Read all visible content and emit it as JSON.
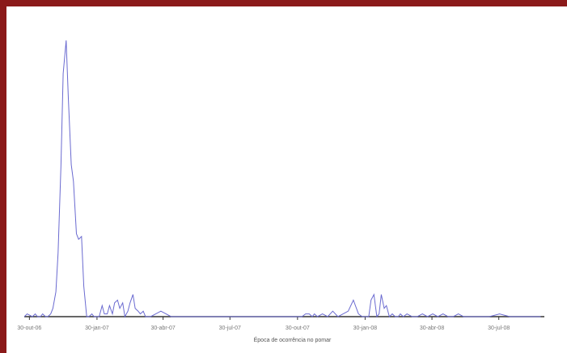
{
  "colors": {
    "frame": "#8b1a1a",
    "series": "#6a6ad0",
    "axis": "#333333",
    "tick_text": "#777777"
  },
  "chart_data": {
    "type": "line",
    "title": "",
    "xlabel": "Época de ocorrência no pomar",
    "ylabel": "",
    "x_tick_labels": [
      "30-out-06",
      "30-jan-07",
      "30-abr-07",
      "30-jul-07",
      "30-out-07",
      "30-jan-08",
      "30-abr-08",
      "30-jul-08"
    ],
    "x_ticks": [
      "2006-10-30",
      "2007-01-30",
      "2007-04-30",
      "2007-07-30",
      "2007-10-30",
      "2008-01-30",
      "2008-04-30",
      "2008-07-30"
    ],
    "xlim": [
      "2006-10-23",
      "2008-09-30"
    ],
    "ylim": [
      0,
      100
    ],
    "grid": false,
    "legend": "none",
    "series": [
      {
        "x": [
          "2006-10-23",
          "2006-10-27",
          "2006-11-03",
          "2006-11-07",
          "2006-11-10",
          "2006-11-14",
          "2006-11-17",
          "2006-11-21",
          "2006-11-24",
          "2006-11-28",
          "2006-12-01",
          "2006-12-05",
          "2006-12-08",
          "2006-12-12",
          "2006-12-15",
          "2006-12-19",
          "2006-12-22",
          "2006-12-26",
          "2006-12-29",
          "2007-01-02",
          "2007-01-05",
          "2007-01-09",
          "2007-01-12",
          "2007-01-16",
          "2007-01-19",
          "2007-01-23",
          "2007-01-26",
          "2007-01-30",
          "2007-02-02",
          "2007-02-06",
          "2007-02-09",
          "2007-02-13",
          "2007-02-16",
          "2007-02-20",
          "2007-02-23",
          "2007-02-27",
          "2007-03-02",
          "2007-03-06",
          "2007-03-09",
          "2007-03-13",
          "2007-03-16",
          "2007-03-20",
          "2007-03-23",
          "2007-03-27",
          "2007-03-30",
          "2007-04-03",
          "2007-04-06",
          "2007-04-13",
          "2007-04-20",
          "2007-04-27",
          "2007-05-11",
          "2007-06-01",
          "2007-07-01",
          "2007-08-01",
          "2007-09-01",
          "2007-10-01",
          "2007-10-22",
          "2007-10-29",
          "2007-11-05",
          "2007-11-10",
          "2007-11-15",
          "2007-11-19",
          "2007-11-22",
          "2007-11-26",
          "2007-12-03",
          "2007-12-10",
          "2007-12-17",
          "2007-12-24",
          "2007-12-31",
          "2008-01-07",
          "2008-01-14",
          "2008-01-21",
          "2008-01-26",
          "2008-01-31",
          "2008-02-04",
          "2008-02-07",
          "2008-02-11",
          "2008-02-15",
          "2008-02-18",
          "2008-02-21",
          "2008-02-25",
          "2008-02-28",
          "2008-03-03",
          "2008-03-07",
          "2008-03-11",
          "2008-03-15",
          "2008-03-18",
          "2008-03-22",
          "2008-03-27",
          "2008-04-03",
          "2008-04-10",
          "2008-04-17",
          "2008-04-24",
          "2008-05-01",
          "2008-05-08",
          "2008-05-15",
          "2008-05-22",
          "2008-05-29",
          "2008-06-05",
          "2008-06-12",
          "2008-06-19",
          "2008-07-03",
          "2008-07-17",
          "2008-07-31",
          "2008-08-14",
          "2008-08-28",
          "2008-09-11",
          "2008-09-25"
        ],
        "y": [
          0,
          1,
          0,
          1,
          0,
          0,
          1,
          0,
          0,
          1,
          3,
          9,
          23,
          55,
          88,
          100,
          79,
          55,
          49,
          30,
          28,
          29,
          11,
          0,
          0,
          1,
          0,
          0,
          0,
          4,
          1,
          1,
          4,
          1,
          5,
          6,
          3,
          5,
          0,
          2,
          5,
          8,
          3,
          2,
          1,
          2,
          0,
          0,
          1,
          2,
          0,
          0,
          0,
          0,
          0,
          0,
          0,
          0,
          0,
          1,
          1,
          0,
          1,
          0,
          1,
          0,
          2,
          0,
          1,
          2,
          6,
          1,
          0,
          0,
          0,
          6,
          8,
          0,
          1,
          8,
          3,
          4,
          0,
          1,
          0,
          0,
          1,
          0,
          1,
          0,
          0,
          1,
          0,
          1,
          0,
          1,
          0,
          0,
          1,
          0,
          0,
          0,
          0,
          1,
          0,
          0,
          0,
          0
        ]
      }
    ]
  }
}
